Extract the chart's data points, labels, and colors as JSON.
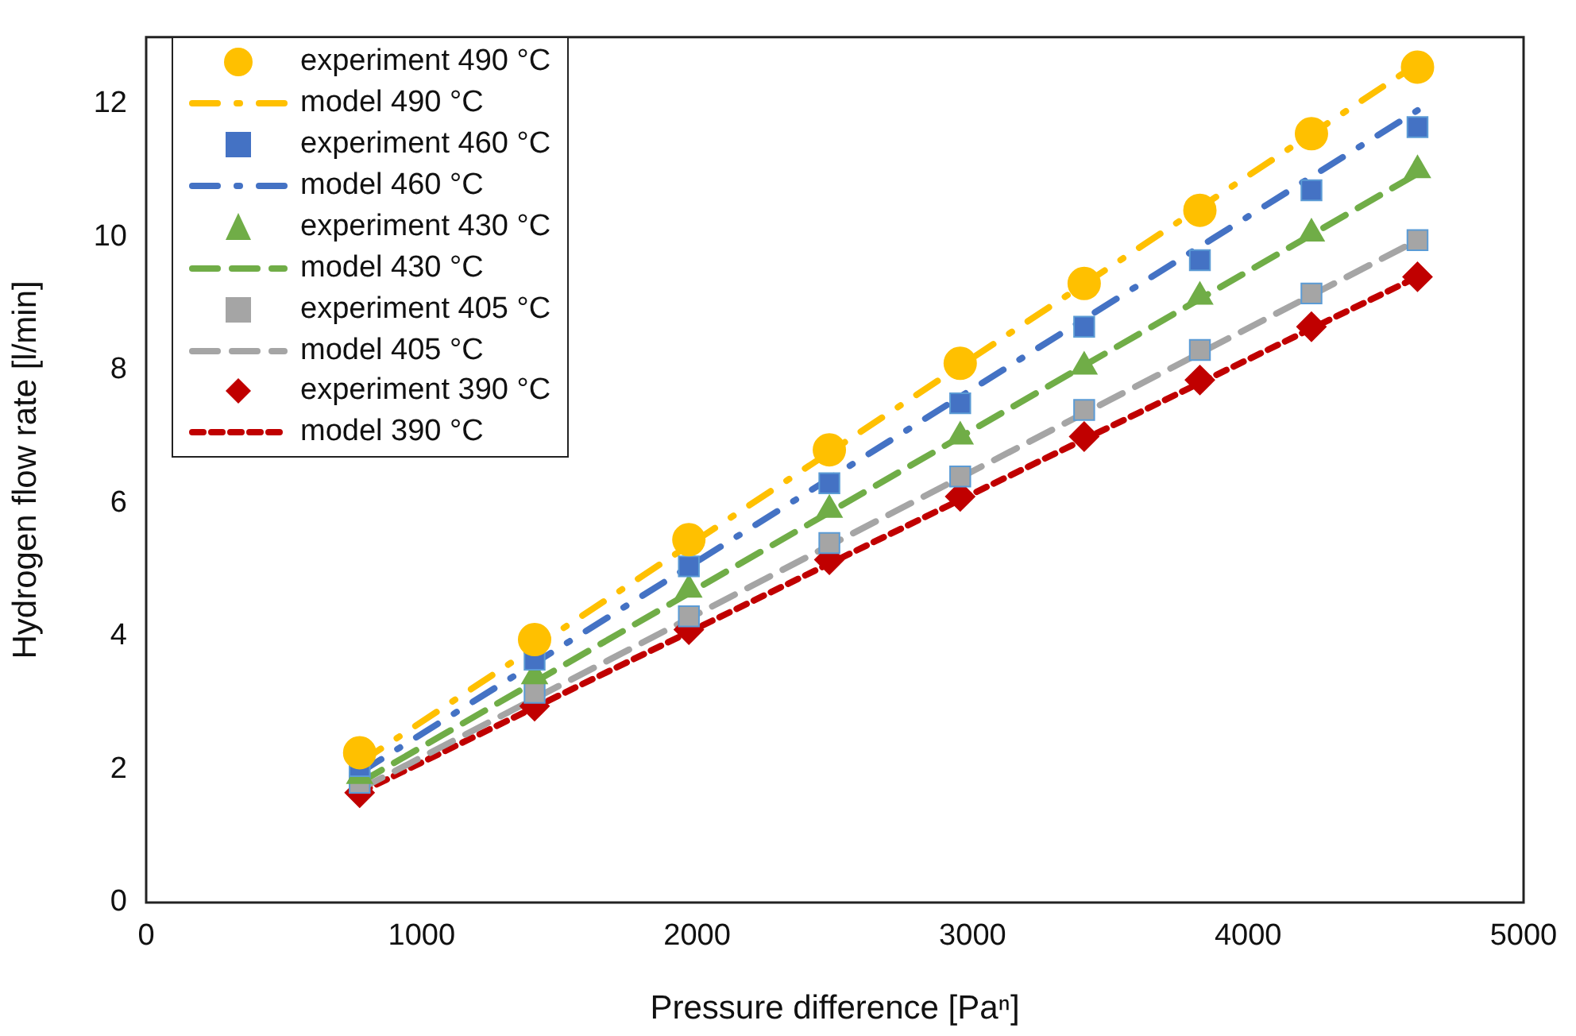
{
  "chart_data": {
    "type": "scatter",
    "xlabel": "Pressure difference [Paⁿ]",
    "ylabel": "Hydrogen flow rate [l/min]",
    "xlim": [
      0,
      5000
    ],
    "xticks": [
      0,
      1000,
      2000,
      3000,
      4000,
      5000
    ],
    "ylim": [
      0,
      13
    ],
    "yticks": [
      0,
      2,
      4,
      6,
      8,
      10,
      12
    ],
    "grid": false,
    "legend": "top left",
    "series": [
      {
        "name": "experiment 490 °C",
        "marker": "circle",
        "color": "#ffc000",
        "x": [
          775,
          1410,
          1970,
          2480,
          2955,
          3405,
          3825,
          4230,
          4615
        ],
        "values": [
          2.25,
          3.95,
          5.45,
          6.8,
          8.1,
          9.3,
          10.4,
          11.55,
          12.55
        ]
      },
      {
        "name": "model 490 °C",
        "type": "line",
        "marker": "none",
        "line_style": "dashdot",
        "color": "#ffc000",
        "x": [
          775,
          4615
        ],
        "values": [
          2.1,
          12.6
        ]
      },
      {
        "name": "experiment 460 °C",
        "marker": "square",
        "color": "#4472c4",
        "x": [
          775,
          1410,
          1970,
          2480,
          2955,
          3405,
          3825,
          4230,
          4615
        ],
        "values": [
          2.05,
          3.65,
          5.05,
          6.3,
          7.5,
          8.65,
          9.65,
          10.7,
          11.65
        ]
      },
      {
        "name": "model 460 °C",
        "type": "line",
        "marker": "none",
        "line_style": "dashdot",
        "color": "#4472c4",
        "x": [
          775,
          4615
        ],
        "values": [
          1.95,
          11.9
        ]
      },
      {
        "name": "experiment 430 °C",
        "marker": "triangle",
        "color": "#70ad47",
        "x": [
          775,
          1410,
          1970,
          2480,
          2955,
          3405,
          3825,
          4230,
          4615
        ],
        "values": [
          1.9,
          3.4,
          4.7,
          5.9,
          7.0,
          8.05,
          9.1,
          10.05,
          11.0
        ]
      },
      {
        "name": "model 430 °C",
        "type": "line",
        "marker": "none",
        "line_style": "dashed",
        "color": "#70ad47",
        "x": [
          775,
          4615
        ],
        "values": [
          1.8,
          10.95
        ]
      },
      {
        "name": "experiment 405 °C",
        "marker": "square",
        "color": "#a5a5a5",
        "x": [
          775,
          1410,
          1970,
          2480,
          2955,
          3405,
          3825,
          4230,
          4615
        ],
        "values": [
          1.8,
          3.15,
          4.3,
          5.4,
          6.4,
          7.4,
          8.3,
          9.15,
          9.95
        ]
      },
      {
        "name": "model 405 °C",
        "type": "line",
        "marker": "none",
        "line_style": "dashed",
        "color": "#a5a5a5",
        "x": [
          775,
          4615
        ],
        "values": [
          1.7,
          9.95
        ]
      },
      {
        "name": "experiment 390 °C",
        "marker": "diamond",
        "color": "#c00000",
        "x": [
          775,
          1410,
          1970,
          2480,
          2955,
          3405,
          3825,
          4230,
          4615
        ],
        "values": [
          1.65,
          2.95,
          4.1,
          5.15,
          6.1,
          7.0,
          7.85,
          8.65,
          9.4
        ]
      },
      {
        "name": "model 390 °C",
        "type": "line",
        "marker": "none",
        "line_style": "dotted",
        "color": "#c00000",
        "x": [
          775,
          4615
        ],
        "values": [
          1.65,
          9.4
        ]
      }
    ]
  }
}
